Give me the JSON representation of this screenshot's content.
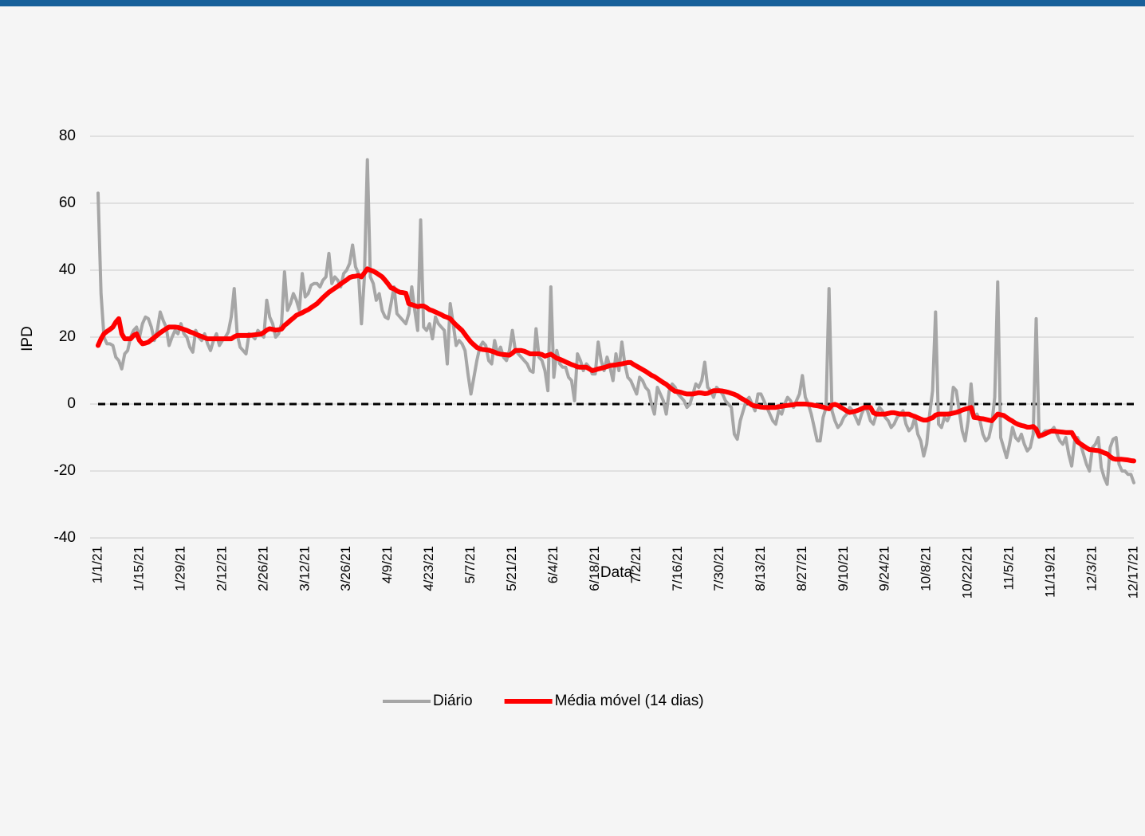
{
  "chart_data": {
    "type": "line",
    "x_label": "Data",
    "y_label": "IPD",
    "categories": [
      "1/1/21",
      null,
      null,
      null,
      null,
      null,
      null,
      null,
      null,
      null,
      null,
      null,
      null,
      null,
      "1/15/21",
      null,
      null,
      null,
      null,
      null,
      null,
      null,
      null,
      null,
      null,
      null,
      null,
      null,
      "1/29/21",
      null,
      null,
      null,
      null,
      null,
      null,
      null,
      null,
      null,
      null,
      null,
      null,
      null,
      "2/12/21",
      null,
      null,
      null,
      null,
      null,
      null,
      null,
      null,
      null,
      null,
      null,
      null,
      null,
      "2/26/21",
      null,
      null,
      null,
      null,
      null,
      null,
      null,
      null,
      null,
      null,
      null,
      null,
      null,
      "3/12/21",
      null,
      null,
      null,
      null,
      null,
      null,
      null,
      null,
      null,
      null,
      null,
      null,
      null,
      "3/26/21",
      null,
      null,
      null,
      null,
      null,
      null,
      null,
      null,
      null,
      null,
      null,
      null,
      null,
      "4/9/21",
      null,
      null,
      null,
      null,
      null,
      null,
      null,
      null,
      null,
      null,
      null,
      null,
      null,
      "4/23/21",
      null,
      null,
      null,
      null,
      null,
      null,
      null,
      null,
      null,
      null,
      null,
      null,
      null,
      "5/7/21",
      null,
      null,
      null,
      null,
      null,
      null,
      null,
      null,
      null,
      null,
      null,
      null,
      null,
      "5/21/21",
      null,
      null,
      null,
      null,
      null,
      null,
      null,
      null,
      null,
      null,
      null,
      null,
      null,
      "6/4/21",
      null,
      null,
      null,
      null,
      null,
      null,
      null,
      null,
      null,
      null,
      null,
      null,
      null,
      "6/18/21",
      null,
      null,
      null,
      null,
      null,
      null,
      null,
      null,
      null,
      null,
      null,
      null,
      null,
      "7/2/21",
      null,
      null,
      null,
      null,
      null,
      null,
      null,
      null,
      null,
      null,
      null,
      null,
      null,
      "7/16/21",
      null,
      null,
      null,
      null,
      null,
      null,
      null,
      null,
      null,
      null,
      null,
      null,
      null,
      "7/30/21",
      null,
      null,
      null,
      null,
      null,
      null,
      null,
      null,
      null,
      null,
      null,
      null,
      null,
      "8/13/21",
      null,
      null,
      null,
      null,
      null,
      null,
      null,
      null,
      null,
      null,
      null,
      null,
      null,
      "8/27/21",
      null,
      null,
      null,
      null,
      null,
      null,
      null,
      null,
      null,
      null,
      null,
      null,
      null,
      "9/10/21",
      null,
      null,
      null,
      null,
      null,
      null,
      null,
      null,
      null,
      null,
      null,
      null,
      null,
      "9/24/21",
      null,
      null,
      null,
      null,
      null,
      null,
      null,
      null,
      null,
      null,
      null,
      null,
      null,
      "10/8/21",
      null,
      null,
      null,
      null,
      null,
      null,
      null,
      null,
      null,
      null,
      null,
      null,
      null,
      "10/22/21",
      null,
      null,
      null,
      null,
      null,
      null,
      null,
      null,
      null,
      null,
      null,
      null,
      null,
      "11/5/21",
      null,
      null,
      null,
      null,
      null,
      null,
      null,
      null,
      null,
      null,
      null,
      null,
      null,
      "11/19/21",
      null,
      null,
      null,
      null,
      null,
      null,
      null,
      null,
      null,
      null,
      null,
      null,
      null,
      "12/3/21",
      null,
      null,
      null,
      null,
      null,
      null,
      null,
      null,
      null,
      null,
      null,
      null,
      null,
      "12/17/21"
    ],
    "series": [
      {
        "name": "Diário",
        "color": "#a6a6a6",
        "width": 4,
        "values": [
          63,
          33,
          20,
          18,
          18,
          17.5,
          14,
          13,
          10.5,
          15,
          16,
          20,
          22,
          23,
          20,
          24,
          26,
          25.5,
          23,
          19,
          22,
          27.5,
          25,
          23,
          17.5,
          20,
          22,
          21,
          24,
          21,
          20,
          17,
          15.5,
          22,
          20,
          19,
          21,
          18,
          16,
          19,
          21,
          17.5,
          19,
          20,
          21.5,
          26,
          34.5,
          21,
          17,
          16,
          15,
          21,
          20.5,
          19.5,
          22,
          21,
          20,
          31,
          26,
          24,
          20,
          21,
          24,
          39.5,
          28,
          30,
          33,
          31,
          28,
          39,
          32,
          33,
          35.5,
          36,
          36,
          35,
          37,
          38,
          45,
          36,
          38,
          37,
          35,
          39,
          40,
          42,
          47.5,
          41,
          39,
          24,
          38,
          73,
          38,
          36,
          31,
          33,
          28,
          26,
          25.5,
          30,
          35,
          27,
          26,
          25,
          24,
          27,
          35,
          28,
          22,
          55,
          23,
          22,
          24,
          19.5,
          26,
          24,
          23,
          22,
          12,
          30,
          24,
          17.5,
          19,
          18,
          16,
          9,
          3,
          8,
          13,
          17,
          18.5,
          17.5,
          13,
          12,
          19,
          15,
          17,
          14,
          13,
          16,
          22,
          16,
          15,
          14,
          13,
          12,
          10,
          9.5,
          22.5,
          14,
          13,
          10,
          4,
          35,
          8,
          16,
          12,
          11,
          11,
          8,
          7,
          1,
          15,
          13,
          10,
          12,
          11,
          9,
          9,
          18.5,
          13,
          10,
          14,
          11,
          7,
          15,
          10,
          18.5,
          12,
          8,
          7,
          5,
          3,
          8,
          7,
          5,
          4,
          0,
          -3,
          5,
          3,
          1,
          -3,
          4,
          6,
          5,
          3,
          2,
          1,
          -1,
          0,
          3,
          6,
          5,
          7,
          12.5,
          5,
          4,
          2,
          5,
          4,
          3,
          1,
          0,
          -1,
          -9,
          -10.5,
          -5,
          -2,
          1,
          2,
          0,
          -2,
          3,
          3,
          1,
          -1,
          -3,
          -5,
          -6,
          -2,
          -3,
          0,
          2,
          1,
          -1,
          1,
          3,
          8.5,
          2,
          0,
          -3,
          -7,
          -11,
          -11,
          -4,
          -1,
          34.5,
          -2,
          -5,
          -7,
          -6,
          -4,
          -3,
          -1,
          -2,
          -4,
          -6,
          -3,
          -1,
          -2,
          -5,
          -6,
          -3,
          -1,
          -2,
          -4,
          -5,
          -7,
          -6,
          -4,
          -3,
          -2,
          -6,
          -8,
          -7,
          -4,
          -9,
          -11,
          -15.5,
          -12,
          -3,
          4,
          27.5,
          -6,
          -7,
          -4,
          -5,
          -3,
          5,
          4,
          -2,
          -8,
          -11,
          -5,
          6,
          -4,
          -3,
          -5,
          -9,
          -11,
          -10,
          -6,
          2,
          36.5,
          -10,
          -13,
          -16,
          -12,
          -7,
          -10,
          -11,
          -9,
          -12,
          -14,
          -13,
          -9,
          25.5,
          -10,
          -9,
          -8,
          -8,
          -8,
          -7,
          -9,
          -11,
          -12,
          -10,
          -15,
          -18.5,
          -11,
          -10,
          -12,
          -15,
          -18,
          -20,
          -13,
          -12,
          -10,
          -19,
          -22,
          -24,
          -13,
          -10.5,
          -10,
          -18,
          -20,
          -20,
          -21,
          -21,
          -23.5
        ]
      },
      {
        "name": "Média móvel (14 dias)",
        "color": "#ff0000",
        "width": 6,
        "values": [
          17.5,
          19.5,
          21,
          21.7,
          22.3,
          23,
          24.5,
          25.5,
          21,
          19.5,
          19.5,
          19.5,
          20.5,
          21,
          19,
          18,
          18.2,
          18.5,
          19.2,
          19.9,
          20.6,
          21.3,
          21.9,
          22.5,
          23,
          23,
          23,
          22.9,
          22.6,
          22.3,
          22,
          21.6,
          21.3,
          20.9,
          20.5,
          20.2,
          19.8,
          19.5,
          19.5,
          19.5,
          19.5,
          19.5,
          19.5,
          19.5,
          19.5,
          19.5,
          20.1,
          20.5,
          20.5,
          20.5,
          20.5,
          20.5,
          20.6,
          20.7,
          20.8,
          20.9,
          21.4,
          22.1,
          22.5,
          22.3,
          22.1,
          22.2,
          22.4,
          23.5,
          24.2,
          25,
          25.7,
          26.5,
          26.9,
          27.3,
          27.8,
          28.2,
          28.8,
          29.4,
          30,
          30.9,
          31.8,
          32.6,
          33.4,
          34,
          34.6,
          35.2,
          35.9,
          36.5,
          37.1,
          37.8,
          38.1,
          38.2,
          38.4,
          38,
          39.2,
          40.4,
          40,
          39.7,
          39.2,
          38.6,
          38,
          37,
          35.9,
          34.7,
          34.4,
          33.8,
          33.4,
          33.3,
          33.1,
          30,
          29.7,
          29.4,
          29.1,
          29.3,
          29.3,
          28.8,
          28.2,
          27.9,
          27.5,
          27.1,
          26.7,
          26.2,
          25.9,
          25.5,
          24.5,
          23.6,
          22.8,
          22,
          20.8,
          19.6,
          18.5,
          17.7,
          16.9,
          16.5,
          16.3,
          16.2,
          16.1,
          15.8,
          15.5,
          15.1,
          14.9,
          14.8,
          14.7,
          14.6,
          15.2,
          16,
          16,
          16,
          15.8,
          15.4,
          15,
          15,
          15,
          15,
          14.8,
          14.3,
          14.6,
          14.9,
          14.3,
          13.7,
          13.4,
          13,
          12.6,
          12.2,
          11.8,
          11.5,
          11.1,
          11,
          11,
          11,
          10.5,
          10,
          10.2,
          10.5,
          10.7,
          10.9,
          11.2,
          11.5,
          11.6,
          11.7,
          11.9,
          12,
          12.2,
          12.4,
          12.4,
          11.8,
          11.3,
          10.8,
          10.3,
          9.8,
          9.2,
          8.6,
          8.2,
          7.6,
          7,
          6.4,
          5.9,
          5.1,
          4.4,
          3.8,
          3.7,
          3.5,
          3.2,
          3,
          3,
          3,
          3.2,
          3.4,
          3.3,
          3.1,
          3.2,
          3.6,
          4,
          4,
          4,
          3.9,
          3.7,
          3.5,
          3.2,
          2.9,
          2.5,
          1.9,
          1.4,
          0.9,
          0.3,
          -0.3,
          -0.6,
          -0.7,
          -0.9,
          -1,
          -1,
          -1,
          -1,
          -1,
          -0.8,
          -0.7,
          -0.5,
          -0.4,
          -0.3,
          -0.2,
          0,
          0,
          0,
          0,
          -0.1,
          -0.2,
          -0.4,
          -0.5,
          -0.7,
          -0.9,
          -1.2,
          -1.4,
          -0.3,
          -0.1,
          -0.4,
          -1,
          -1.5,
          -2.1,
          -2.5,
          -2.3,
          -2.1,
          -1.8,
          -1.4,
          -1,
          -1,
          -1,
          -2.6,
          -3,
          -3,
          -3,
          -3,
          -2.8,
          -2.6,
          -2.6,
          -2.8,
          -3,
          -3,
          -3,
          -3,
          -3.4,
          -3.7,
          -4.1,
          -4.5,
          -4.8,
          -4.8,
          -4.4,
          -4.1,
          -3.3,
          -3,
          -3,
          -3,
          -3,
          -2.9,
          -2.7,
          -2.5,
          -2.2,
          -1.8,
          -1.5,
          -1.3,
          -1,
          -4,
          -4.1,
          -4.3,
          -4.4,
          -4.6,
          -4.8,
          -5,
          -4,
          -3,
          -3.2,
          -3.4,
          -4,
          -4.6,
          -5.1,
          -5.7,
          -6.1,
          -6.4,
          -6.6,
          -6.9,
          -6.9,
          -6.7,
          -7.5,
          -9.5,
          -9.3,
          -8.9,
          -8.5,
          -8.1,
          -8.1,
          -8.2,
          -8.3,
          -8.4,
          -8.5,
          -8.5,
          -8.5,
          -10,
          -11.3,
          -11.9,
          -12.5,
          -13.1,
          -13.6,
          -13.7,
          -13.8,
          -13.9,
          -14.2,
          -14.6,
          -14.9,
          -15.7,
          -16.3,
          -16.5,
          -16.5,
          -16.5,
          -16.6,
          -16.7,
          -16.9,
          -17
        ]
      }
    ],
    "ylim": [
      -40,
      80
    ],
    "yticks": [
      -40,
      -20,
      0,
      20,
      40,
      60,
      80
    ],
    "grid": true,
    "reference_line": {
      "value": 0,
      "color": "#000000",
      "dashed": true
    },
    "legend": "bottom"
  }
}
